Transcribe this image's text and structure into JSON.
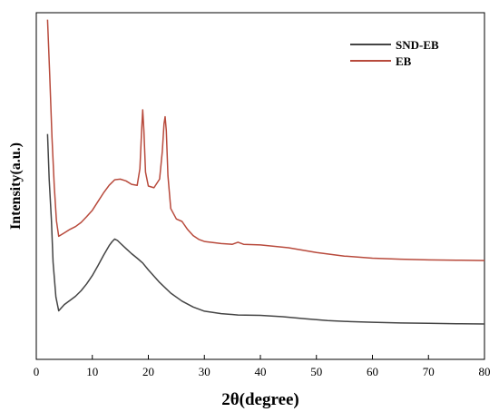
{
  "chart_data": {
    "type": "line",
    "title": "",
    "xlabel": "2θ(degree)",
    "ylabel": "Intensity(a.u.)",
    "xlim": [
      0,
      80
    ],
    "xticks": [
      0,
      10,
      20,
      30,
      40,
      50,
      60,
      70,
      80
    ],
    "ylim": [
      0,
      100
    ],
    "grid": false,
    "legend_position": "top-right",
    "series": [
      {
        "name": "SND-EB",
        "color": "#444444",
        "x": [
          2.0,
          2.3,
          2.7,
          3.0,
          3.5,
          4.0,
          5,
          6,
          7,
          8,
          9,
          10,
          11,
          12,
          13,
          13.5,
          14,
          14.5,
          15,
          16,
          17,
          18,
          19,
          20,
          22,
          24,
          26,
          28,
          30,
          33,
          36,
          40,
          44,
          48,
          52,
          56,
          60,
          65,
          70,
          75,
          80
        ],
        "y": [
          65,
          52,
          40,
          28,
          18,
          14,
          15.8,
          17,
          18.2,
          19.8,
          21.8,
          24.2,
          27,
          30,
          32.8,
          33.9,
          34.7,
          34.3,
          33.5,
          32,
          30.5,
          29.2,
          27.8,
          25.8,
          22.2,
          19.1,
          16.8,
          15.1,
          13.9,
          13.2,
          12.8,
          12.7,
          12.3,
          11.7,
          11.2,
          10.9,
          10.7,
          10.5,
          10.4,
          10.3,
          10.2
        ]
      },
      {
        "name": "EB",
        "color": "#b84a3c",
        "x": [
          2.0,
          2.4,
          2.8,
          3.2,
          3.6,
          4.0,
          5,
          6,
          7,
          8,
          9,
          10,
          11,
          12,
          13,
          14,
          15,
          16,
          17,
          18,
          18.5,
          18.8,
          19.0,
          19.2,
          19.5,
          20,
          21,
          22,
          22.5,
          22.8,
          23.0,
          23.2,
          23.5,
          24,
          25,
          26,
          27,
          28,
          29,
          30,
          33,
          35,
          36,
          37,
          40,
          45,
          50,
          55,
          60,
          65,
          70,
          75,
          80
        ],
        "y": [
          98,
          82,
          64,
          50,
          40,
          35.5,
          36.5,
          37.5,
          38.3,
          39.5,
          41.2,
          43,
          45.5,
          48,
          50.2,
          51.8,
          52,
          51.5,
          50.5,
          50.2,
          55,
          66,
          72,
          66,
          54,
          50,
          49.5,
          52,
          60,
          68,
          70,
          66,
          53,
          43.5,
          40.5,
          39.8,
          37.5,
          35.7,
          34.6,
          34,
          33.4,
          33.2,
          33.8,
          33.2,
          33,
          32.2,
          30.8,
          29.8,
          29.2,
          28.9,
          28.7,
          28.6,
          28.5
        ]
      }
    ]
  }
}
